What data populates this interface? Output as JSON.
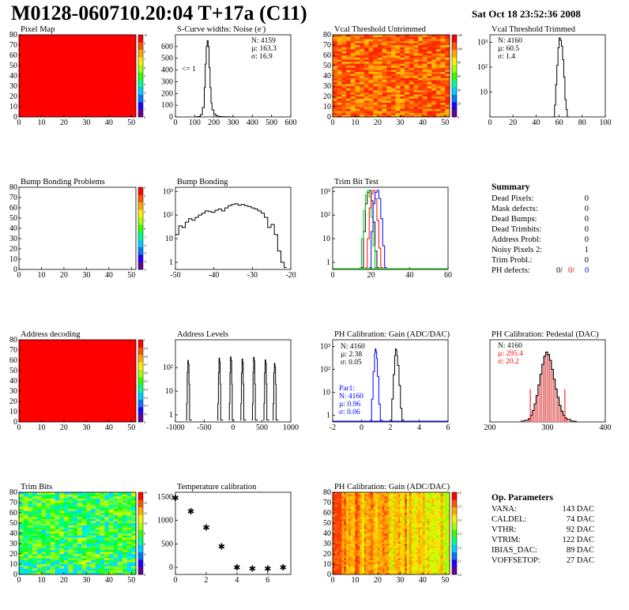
{
  "header": {
    "title": "M0128-060710.20:04 T+17a (C11)",
    "date": "Sat Oct 18 23:52:36 2008"
  },
  "colors": {
    "map_red": "#ff0000",
    "black": "#000000",
    "red_line": "#ff0000",
    "blue_line": "#0000ff",
    "green_line": "#00cc00",
    "palette": [
      "#660099",
      "#2200ff",
      "#0077ff",
      "#00ccff",
      "#00ff88",
      "#33ff00",
      "#aaff00",
      "#ffee00",
      "#ffaa00",
      "#ff5500",
      "#ff0000"
    ]
  },
  "panels": {
    "pixel_map": {
      "title": "Pixel Map"
    },
    "scurve": {
      "title": "S-Curve widths: Noise (e",
      "title_sup": "-",
      "title_end": ")",
      "note": "<= 1"
    },
    "vcal_untrimmed": {
      "title": "Vcal Threshold Untrimmed"
    },
    "vcal_trimmed": {
      "title": "Vcal Threshold Trimmed"
    },
    "bump_problems": {
      "title": "Bump Bonding Problems"
    },
    "bump_bonding": {
      "title": "Bump Bonding"
    },
    "trim_bit_test": {
      "title": "Trim Bit Test"
    },
    "address_decoding": {
      "title": "Address decoding"
    },
    "address_levels": {
      "title": "Address Levels"
    },
    "ph_gain": {
      "title": "PH Calibration: Gain (ADC/DAC)"
    },
    "ph_pedestal": {
      "title": "PH Calibration: Pedestal (DAC)"
    },
    "trim_bits": {
      "title": "Trim Bits"
    },
    "temperature": {
      "title": "Temperature calibration"
    },
    "ph_gain_map": {
      "title": "PH Calibration: Gain (ADC/DAC)"
    }
  },
  "summary": {
    "title": "Summary",
    "rows": [
      {
        "label": "Dead Pixels:",
        "value": "0"
      },
      {
        "label": "Mask defects:",
        "value": "0"
      },
      {
        "label": "Dead Bumps:",
        "value": "0"
      },
      {
        "label": "Dead Trimbits:",
        "value": "0"
      },
      {
        "label": "Address Probl:",
        "value": "0"
      },
      {
        "label": "Noisy Pixels 2:",
        "value": "1"
      },
      {
        "label": "Trim Probl.:",
        "value": "0"
      }
    ],
    "ph_defects": {
      "label": "PH defects:",
      "v1": "0/",
      "v2": "0/",
      "v3": "0"
    }
  },
  "op_parameters": {
    "title": "Op. Parameters",
    "rows": [
      {
        "label": "VANA:",
        "value": "143 DAC"
      },
      {
        "label": "CALDEL:",
        "value": "74 DAC"
      },
      {
        "label": "VTHR:",
        "value": "92 DAC"
      },
      {
        "label": "VTRIM:",
        "value": "122 DAC"
      },
      {
        "label": "IBIAS_DAC:",
        "value": "89 DAC"
      },
      {
        "label": "VOFFSETOP:",
        "value": "27 DAC"
      }
    ]
  },
  "chart_data": [
    {
      "id": "pixel_map",
      "type": "heatmap",
      "title": "Pixel Map",
      "xlim": [
        0,
        52
      ],
      "ylim": [
        0,
        80
      ],
      "xticks": [
        "0",
        "10",
        "20",
        "30",
        "40",
        "50"
      ],
      "yticks": [
        "0",
        "10",
        "20",
        "30",
        "40",
        "50",
        "60",
        "70",
        "80"
      ],
      "z_uniform": 10,
      "zlim": [
        0,
        10
      ],
      "palette_labels": [
        "10",
        "9",
        "8",
        "7",
        "6",
        "5",
        "4",
        "3",
        "2",
        "1",
        "0"
      ]
    },
    {
      "id": "scurve",
      "type": "line",
      "title": "S-Curve widths: Noise (e-)",
      "xlim": [
        0,
        600
      ],
      "ylim": [
        0,
        700
      ],
      "xticks": [
        "0",
        "100",
        "200",
        "300",
        "400",
        "500",
        "600"
      ],
      "yticks": [
        "0",
        "100",
        "200",
        "300",
        "400",
        "500",
        "600"
      ],
      "x": [
        100,
        110,
        120,
        130,
        140,
        150,
        155,
        160,
        165,
        170,
        175,
        180,
        185,
        190,
        200,
        210,
        220,
        230,
        240,
        260,
        280,
        300
      ],
      "y": [
        0,
        2,
        5,
        20,
        80,
        250,
        450,
        600,
        650,
        600,
        420,
        250,
        120,
        60,
        25,
        10,
        5,
        3,
        2,
        1,
        0,
        0
      ],
      "stats": {
        "N": "N: 4159",
        "mu": "µ: 163.3",
        "sigma": "σ: 16.9"
      }
    },
    {
      "id": "vcal_untrimmed",
      "type": "heatmap",
      "title": "Vcal Threshold Untrimmed",
      "xlim": [
        0,
        52
      ],
      "ylim": [
        0,
        80
      ],
      "xticks": [
        "0",
        "10",
        "20",
        "30",
        "40",
        "50"
      ],
      "yticks": [
        "0",
        "10",
        "20",
        "30",
        "40",
        "50",
        "60",
        "70",
        "80"
      ],
      "zlim": [
        0,
        130
      ],
      "palette_labels": [
        "120",
        "100",
        "80",
        "60",
        "40",
        "20",
        "0"
      ],
      "z_dominant": "orange-red"
    },
    {
      "id": "vcal_trimmed",
      "type": "line",
      "title": "Vcal Threshold Trimmed",
      "xlim": [
        0,
        100
      ],
      "ylog": true,
      "ylim": [
        1,
        2000
      ],
      "xticks": [
        "0",
        "20",
        "40",
        "60",
        "80",
        "100"
      ],
      "yticks": [
        "10",
        "10²",
        "10³"
      ],
      "x": [
        54,
        56,
        57,
        58,
        59,
        60,
        61,
        62,
        63,
        64,
        65,
        66,
        67
      ],
      "y": [
        1,
        3,
        20,
        120,
        600,
        1500,
        1200,
        700,
        200,
        40,
        5,
        2,
        1
      ],
      "stats": {
        "N": "N: 4160",
        "mu": "µ: 60.5",
        "sigma": "σ:  1.4"
      }
    },
    {
      "id": "bump_problems",
      "type": "heatmap",
      "title": "Bump Bonding Problems",
      "xlim": [
        0,
        52
      ],
      "ylim": [
        0,
        80
      ],
      "xticks": [
        "0",
        "10",
        "20",
        "30",
        "40",
        "50"
      ],
      "yticks": [
        "0",
        "10",
        "20",
        "30",
        "40",
        "50",
        "60",
        "70",
        "80"
      ],
      "z_uniform": null,
      "palette_labels": [
        "5",
        "4",
        "3",
        "2",
        "1",
        "0",
        "-1",
        "-2",
        "-3",
        "-4",
        "-5"
      ]
    },
    {
      "id": "bump_bonding",
      "type": "line",
      "title": "Bump Bonding",
      "xlim": [
        -50,
        -15
      ],
      "ylog": true,
      "ylim": [
        0.5,
        1500
      ],
      "xticks": [
        "-50",
        "-40",
        "-30",
        "-20"
      ],
      "yticks": [
        "1",
        "10",
        "10²",
        "10³"
      ],
      "x": [
        -50,
        -49,
        -48,
        -47,
        -46,
        -45,
        -44,
        -43,
        -42,
        -41,
        -40,
        -39,
        -38,
        -37,
        -36,
        -35,
        -34,
        -33,
        -32,
        -31,
        -30,
        -29,
        -28,
        -27,
        -26,
        -25,
        -24,
        -23,
        -22,
        -21,
        -20,
        -19,
        -18,
        -17
      ],
      "y": [
        15,
        35,
        30,
        50,
        70,
        60,
        80,
        100,
        120,
        150,
        140,
        130,
        160,
        180,
        150,
        200,
        250,
        280,
        300,
        260,
        280,
        250,
        230,
        200,
        180,
        150,
        120,
        80,
        30,
        40,
        15,
        3,
        1,
        0.6
      ]
    },
    {
      "id": "trim_bit_test",
      "type": "line",
      "title": "Trim Bit Test",
      "xlim": [
        0,
        60
      ],
      "ylog": true,
      "ylim": [
        0.5,
        1500
      ],
      "xticks": [
        "0",
        "20",
        "40",
        "60"
      ],
      "yticks": [
        "1",
        "10",
        "10²",
        "10³"
      ],
      "series": [
        {
          "color": "black",
          "x": [
            15,
            16,
            17,
            18,
            19,
            20,
            21,
            22,
            23
          ],
          "y": [
            0.6,
            20,
            300,
            900,
            1100,
            400,
            50,
            3,
            0.6
          ]
        },
        {
          "color": "green",
          "x": [
            14,
            15,
            16,
            17,
            18,
            19,
            20,
            21,
            22
          ],
          "y": [
            0.6,
            10,
            150,
            700,
            1100,
            600,
            80,
            5,
            0.6
          ]
        },
        {
          "color": "red",
          "x": [
            17,
            18,
            19,
            20,
            21,
            22,
            23,
            24,
            25
          ],
          "y": [
            0.6,
            10,
            200,
            800,
            1100,
            500,
            60,
            4,
            0.6
          ]
        },
        {
          "color": "blue",
          "x": [
            19,
            20,
            21,
            22,
            23,
            24,
            25,
            26,
            27
          ],
          "y": [
            0.6,
            20,
            300,
            900,
            1100,
            500,
            70,
            5,
            0.6
          ]
        }
      ]
    },
    {
      "id": "address_decoding",
      "type": "heatmap",
      "title": "Address decoding",
      "xlim": [
        0,
        52
      ],
      "ylim": [
        0,
        80
      ],
      "xticks": [
        "0",
        "10",
        "20",
        "30",
        "40",
        "50"
      ],
      "yticks": [
        "0",
        "10",
        "20",
        "30",
        "40",
        "50",
        "60",
        "70",
        "80"
      ],
      "z_uniform": 1,
      "zlim": [
        0,
        1
      ],
      "palette_labels": [
        "1",
        "0.9",
        "0.8",
        "0.7",
        "0.6",
        "0.5",
        "0.4",
        "0.3",
        "0.2",
        "0.1",
        "0"
      ]
    },
    {
      "id": "address_levels",
      "type": "line",
      "title": "Address Levels",
      "xlim": [
        -1000,
        1000
      ],
      "ylog": true,
      "ylim": [
        0.5,
        1500
      ],
      "xticks": [
        "-1000",
        "-500",
        "0",
        "500",
        "1000"
      ],
      "yticks": [
        "1",
        "10",
        "10²"
      ],
      "peaks": [
        {
          "x": -780,
          "h": 200
        },
        {
          "x": -240,
          "h": 250
        },
        {
          "x": -40,
          "h": 280
        },
        {
          "x": 160,
          "h": 230
        },
        {
          "x": 360,
          "h": 270
        },
        {
          "x": 560,
          "h": 210
        },
        {
          "x": 720,
          "h": 150
        }
      ]
    },
    {
      "id": "ph_gain",
      "type": "line",
      "title": "PH Calibration: Gain (ADC/DAC)",
      "xlim": [
        -2,
        6
      ],
      "ylog": true,
      "ylim": [
        0.5,
        2000
      ],
      "xticks": [
        "-2",
        "0",
        "2",
        "4",
        "6"
      ],
      "yticks": [
        "1",
        "10",
        "10²",
        "10³"
      ],
      "series": [
        {
          "color": "black",
          "x": [
            2.0,
            2.1,
            2.2,
            2.3,
            2.35,
            2.4,
            2.45,
            2.5,
            2.6,
            2.7,
            2.8
          ],
          "y": [
            0.6,
            5,
            60,
            400,
            800,
            700,
            400,
            150,
            20,
            2,
            0.6
          ]
        },
        {
          "color": "blue",
          "x": [
            0.6,
            0.7,
            0.8,
            0.9,
            0.95,
            1.0,
            1.05,
            1.1,
            1.2,
            1.3
          ],
          "y": [
            0.6,
            5,
            80,
            500,
            800,
            600,
            300,
            50,
            3,
            0.6
          ]
        }
      ],
      "stats": {
        "N": "N: 4160",
        "mu": "µ: 2.38",
        "sigma": "σ: 0.05"
      },
      "par1": {
        "label": "Par1:",
        "N": "N: 4160",
        "mu": "µ: 0.96",
        "sigma": "σ: 0.06"
      }
    },
    {
      "id": "ph_pedestal",
      "type": "bar",
      "title": "PH Calibration: Pedestal (DAC)",
      "xlim": [
        150,
        450
      ],
      "ylim": [
        0,
        100
      ],
      "xticks": [
        "200",
        "300",
        "400"
      ],
      "yticks": [],
      "x": [
        230,
        240,
        250,
        255,
        260,
        265,
        270,
        275,
        280,
        285,
        290,
        295,
        300,
        305,
        310,
        315,
        320,
        325,
        330,
        335,
        340,
        345,
        350,
        360,
        370
      ],
      "y": [
        1,
        2,
        4,
        8,
        14,
        22,
        32,
        45,
        58,
        70,
        80,
        85,
        82,
        75,
        64,
        52,
        40,
        30,
        20,
        13,
        8,
        5,
        3,
        1,
        0.5
      ],
      "cut_lines": [
        255,
        345
      ],
      "stats": {
        "N": "N: 4160",
        "mu": "µ: 295.4",
        "sigma": "σ: 20.2"
      }
    },
    {
      "id": "trim_bits",
      "type": "heatmap",
      "title": "Trim Bits",
      "xlim": [
        0,
        52
      ],
      "ylim": [
        0,
        80
      ],
      "xticks": [
        "0",
        "10",
        "20",
        "30",
        "40",
        "50"
      ],
      "yticks": [
        "0",
        "10",
        "20",
        "30",
        "40",
        "50",
        "60",
        "70",
        "80"
      ],
      "zlim": [
        0,
        16
      ],
      "palette_labels": [
        "16",
        "14",
        "12",
        "10",
        "8",
        "6",
        "4",
        "2",
        "0"
      ],
      "z_dominant": "green"
    },
    {
      "id": "temperature",
      "type": "scatter",
      "title": "Temperature calibration",
      "xlim": [
        0,
        7.5
      ],
      "ylim": [
        -150,
        1600
      ],
      "xticks": [
        "0",
        "2",
        "4",
        "6"
      ],
      "yticks": [
        "0",
        "500",
        "1000",
        "1500"
      ],
      "x": [
        0,
        1,
        2,
        3,
        4,
        5,
        6,
        7
      ],
      "y": [
        1480,
        1200,
        850,
        450,
        0,
        -20,
        -20,
        0
      ]
    },
    {
      "id": "ph_gain_map",
      "type": "heatmap",
      "title": "PH Calibration: Gain (ADC/DAC)",
      "xlim": [
        0,
        52
      ],
      "ylim": [
        0,
        80
      ],
      "xticks": [
        "0",
        "10",
        "20",
        "30",
        "40",
        "50"
      ],
      "yticks": [
        "0",
        "10",
        "20",
        "30",
        "40",
        "50",
        "60",
        "70",
        "80"
      ],
      "zlim": [
        2.0,
        2.6
      ],
      "palette_labels": [
        "2.6",
        "2.5",
        "2.4",
        "2.3",
        "2.2",
        "2.1",
        "2.0"
      ],
      "z_dominant": "orange"
    }
  ]
}
